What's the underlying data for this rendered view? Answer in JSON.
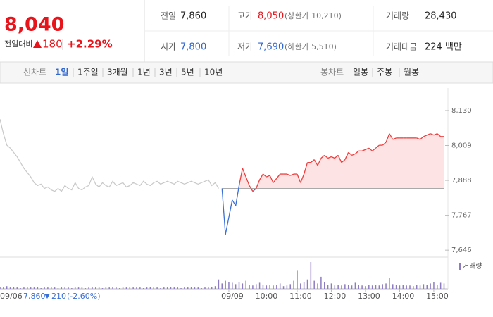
{
  "quote": {
    "price": "8,040",
    "change_label": "전일대비",
    "change": "180",
    "change_pct": "+2.29%"
  },
  "stats": [
    {
      "label": "전일",
      "value": "7,860"
    },
    {
      "label": "고가",
      "value": "8,050",
      "note": "(상한가 10,210)"
    },
    {
      "label": "거래량",
      "value": "28,430"
    },
    {
      "label": "시가",
      "value": "7,800"
    },
    {
      "label": "저가",
      "value": "7,690",
      "note": "(하한가 5,510)"
    },
    {
      "label": "거래대금",
      "value": "224 백만"
    }
  ],
  "tabs": {
    "line_label": "선차트",
    "line": [
      "1일",
      "1주일",
      "3개월",
      "1년",
      "3년",
      "5년",
      "10년"
    ],
    "active_line": 0,
    "candle_label": "봉차트",
    "candle": [
      "일봉",
      "주봉",
      "월봉"
    ]
  },
  "footer": {
    "close": "7,860",
    "change": "210",
    "change_pct": "(-2.60%)"
  },
  "chart_data": {
    "type": "line",
    "categories": [
      "09/06",
      null,
      null,
      null,
      null,
      null,
      null,
      null,
      null,
      null,
      null,
      null,
      null,
      null,
      null,
      null,
      null,
      null,
      null,
      null,
      null,
      null,
      null,
      null,
      null,
      null,
      null,
      null,
      null,
      null,
      null,
      null,
      null,
      null,
      null,
      null,
      null,
      null,
      null,
      null,
      null,
      null,
      null,
      null,
      null,
      null,
      null,
      null,
      null,
      null,
      null,
      null,
      null,
      null,
      null,
      null,
      null,
      null,
      null,
      null,
      null,
      null,
      null,
      null,
      null,
      null,
      null,
      "09/09",
      null,
      null,
      null,
      null,
      null,
      null,
      null,
      null,
      null,
      "10:00",
      null,
      null,
      null,
      null,
      null,
      null,
      null,
      null,
      null,
      "11:00",
      null,
      null,
      null,
      null,
      null,
      null,
      null,
      null,
      null,
      "12:00",
      null,
      null,
      null,
      null,
      null,
      null,
      null,
      null,
      null,
      "13:00",
      null,
      null,
      null,
      null,
      null,
      null,
      null,
      null,
      null,
      "14:00",
      null,
      null,
      null,
      null,
      null,
      null,
      null,
      null,
      null,
      "15:00",
      null,
      null,
      null
    ],
    "series": [
      {
        "color": "#c8c8c8",
        "values": [
          8100,
          8050,
          8010,
          8000,
          7985,
          7970,
          7950,
          7930,
          7915,
          7900,
          7880,
          7870,
          7875,
          7860,
          7865,
          7855,
          7850,
          7860,
          7850,
          7870,
          7860,
          7855,
          7880,
          7860,
          7855,
          7865,
          7870,
          7900,
          7875,
          7865,
          7880,
          7870,
          7865,
          7885,
          7870,
          7875,
          7880,
          7865,
          7870,
          7880,
          7875,
          7870,
          7885,
          7875,
          7870,
          7880,
          7885,
          7875,
          7880,
          7885,
          7880,
          7875,
          7885,
          7880,
          7875,
          7880,
          7885,
          7880,
          7875,
          7880,
          7885,
          7890,
          7870,
          7880,
          7860,
          null,
          null,
          null,
          null,
          null,
          null,
          null,
          null,
          null,
          null,
          null,
          null,
          null,
          null,
          null,
          null,
          null,
          null,
          null,
          null,
          null,
          null,
          null,
          null,
          null,
          null,
          null,
          null,
          null,
          null,
          null,
          null,
          null,
          null,
          null,
          null,
          null,
          null,
          null,
          null,
          null,
          null,
          null,
          null,
          null,
          null,
          null,
          null,
          null,
          null,
          null,
          null,
          null,
          null,
          null,
          null,
          null,
          null,
          null,
          null,
          null,
          null,
          null,
          null,
          null,
          null
        ]
      },
      {
        "color": "#f03c3c",
        "down_color": "#3a6fd8",
        "fill": "#fde3e3",
        "values": [
          null,
          null,
          null,
          null,
          null,
          null,
          null,
          null,
          null,
          null,
          null,
          null,
          null,
          null,
          null,
          null,
          null,
          null,
          null,
          null,
          null,
          null,
          null,
          null,
          null,
          null,
          null,
          null,
          null,
          null,
          null,
          null,
          null,
          null,
          null,
          null,
          null,
          null,
          null,
          null,
          null,
          null,
          null,
          null,
          null,
          null,
          null,
          null,
          null,
          null,
          null,
          null,
          null,
          null,
          null,
          null,
          null,
          null,
          null,
          null,
          null,
          null,
          null,
          null,
          null,
          7860,
          7700,
          7760,
          7820,
          7800,
          7870,
          7930,
          7900,
          7870,
          7850,
          7860,
          7890,
          7910,
          7900,
          7905,
          7880,
          7895,
          7910,
          7910,
          7910,
          7905,
          7910,
          7910,
          7880,
          7910,
          7950,
          7950,
          7960,
          7940,
          7965,
          7975,
          7965,
          7970,
          7965,
          7975,
          7950,
          7960,
          7985,
          7975,
          7980,
          7990,
          7990,
          7995,
          8000,
          7990,
          8000,
          8010,
          8010,
          8020,
          8050,
          8030,
          8035,
          8035,
          8035,
          8035,
          8035,
          8035,
          8035,
          8030,
          8040,
          8045,
          8050,
          8045,
          8050,
          8040,
          8040
        ]
      }
    ],
    "reference": 7860,
    "ylim": [
      7622,
      8208
    ],
    "yticks": [
      {
        "value": 8130,
        "label": "8,130"
      },
      {
        "value": 8009,
        "label": "8,009"
      },
      {
        "value": 7888,
        "label": "7,888"
      },
      {
        "value": 7767,
        "label": "7,767"
      },
      {
        "value": 7646,
        "label": "7,646"
      }
    ],
    "volume": {
      "name": "거래량",
      "color": "#8e7cc3",
      "ylim": [
        0,
        40
      ],
      "values": [
        3,
        2,
        4,
        2,
        3,
        2,
        1,
        2,
        3,
        2,
        2,
        3,
        1,
        2,
        2,
        3,
        2,
        1,
        2,
        2,
        2,
        1,
        3,
        2,
        2,
        1,
        2,
        3,
        2,
        2,
        1,
        2,
        2,
        3,
        2,
        1,
        2,
        2,
        3,
        2,
        2,
        2,
        1,
        2,
        3,
        2,
        2,
        1,
        2,
        2,
        3,
        2,
        2,
        1,
        2,
        2,
        3,
        2,
        2,
        1,
        2,
        2,
        3,
        4,
        14,
        8,
        12,
        10,
        9,
        7,
        10,
        8,
        12,
        6,
        5,
        7,
        9,
        6,
        5,
        6,
        5,
        6,
        8,
        4,
        5,
        7,
        12,
        28,
        8,
        10,
        14,
        40,
        12,
        8,
        18,
        10,
        6,
        8,
        5,
        6,
        5,
        7,
        6,
        5,
        9,
        6,
        5,
        4,
        6,
        5,
        6,
        5,
        7,
        8,
        16,
        7,
        6,
        5,
        6,
        5,
        5,
        4,
        6,
        5,
        7,
        6,
        8,
        10,
        6,
        9,
        8
      ]
    }
  }
}
